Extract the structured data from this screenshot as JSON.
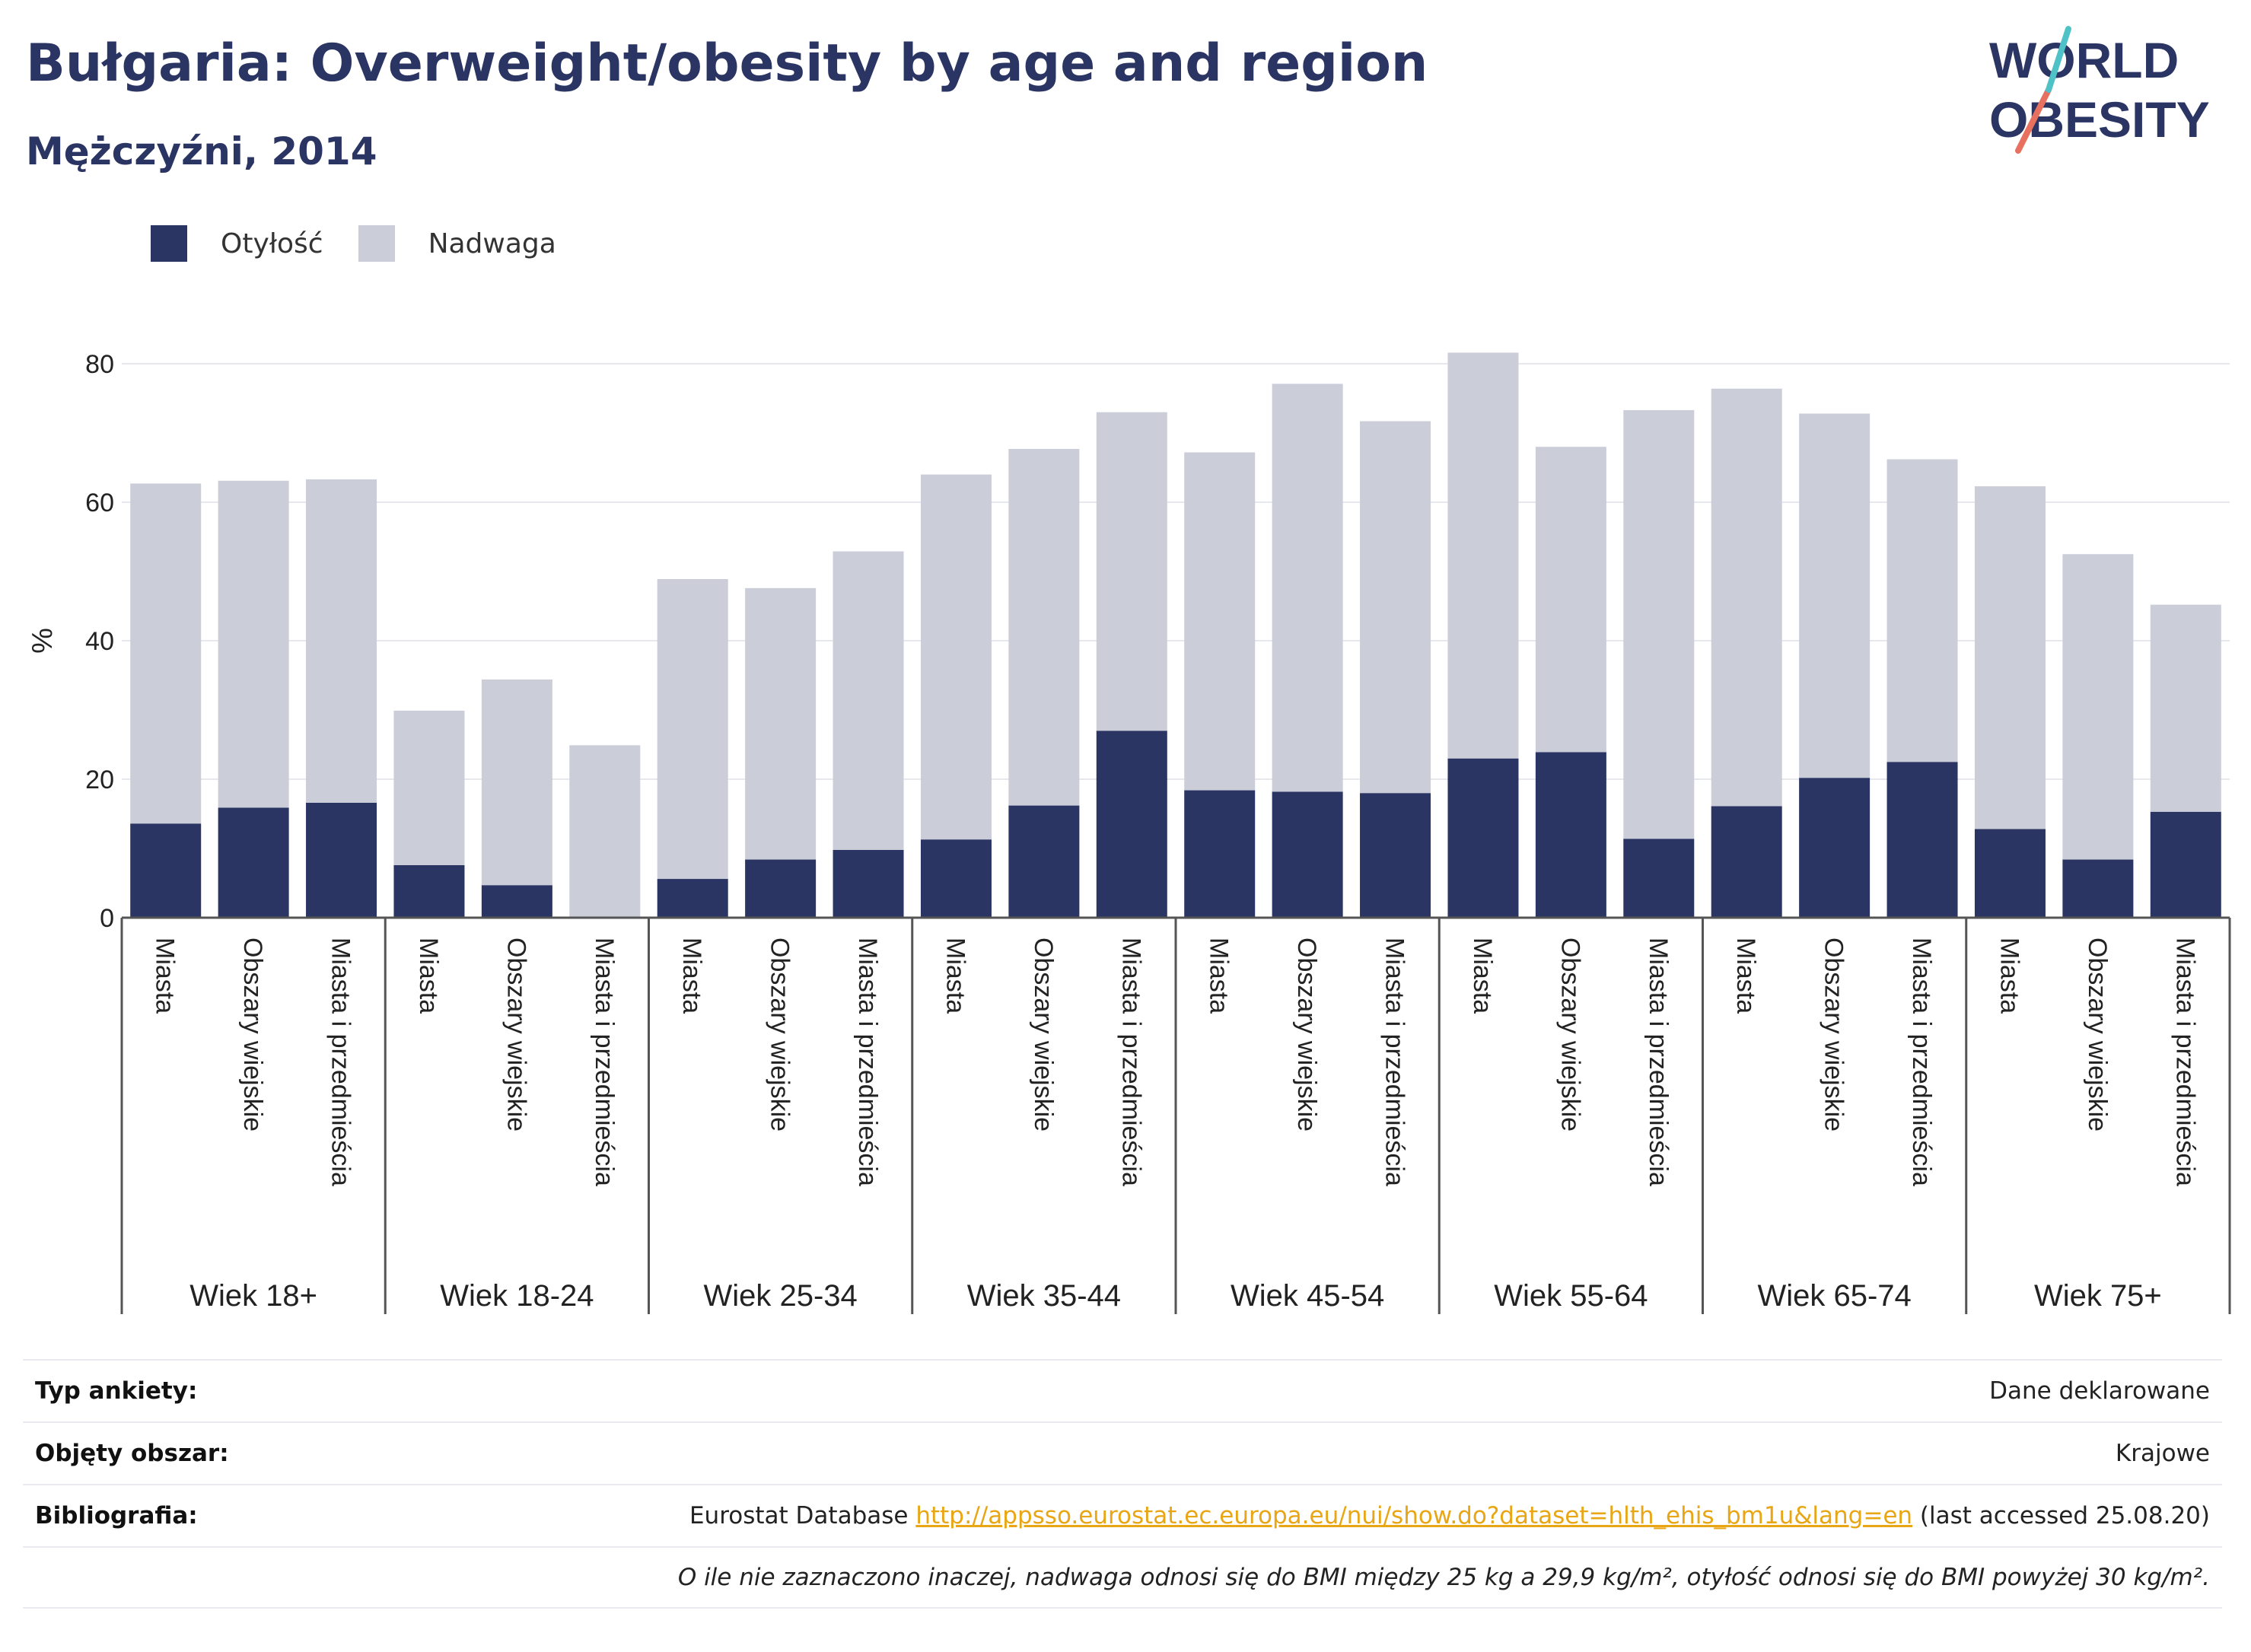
{
  "header": {
    "title": "Bułgaria: Overweight/obesity by age and region",
    "subtitle": "Mężczyźni, 2014"
  },
  "logo": {
    "line1": "WORLD",
    "line2": "OBESITY"
  },
  "legend": {
    "items": [
      {
        "label": "Otyłość",
        "color": "#2b3563"
      },
      {
        "label": "Nadwaga",
        "color": "#cbcdd9"
      }
    ]
  },
  "chart_data": {
    "type": "bar",
    "stacked": true,
    "ylabel": "%",
    "ylim": [
      0,
      85
    ],
    "yticks": [
      0,
      20,
      40,
      60,
      80
    ],
    "grid": true,
    "legend_position": "top-left",
    "groups": [
      "Wiek 18+",
      "Wiek 18-24",
      "Wiek 25-34",
      "Wiek 35-44",
      "Wiek 45-54",
      "Wiek 55-64",
      "Wiek 65-74",
      "Wiek 75+"
    ],
    "subcategories": [
      "Miasta",
      "Obszary wiejskie",
      "Miasta i przedmieścia"
    ],
    "series": [
      {
        "name": "Otyłość",
        "color": "#2b3563",
        "values": [
          13.6,
          15.9,
          16.6,
          7.6,
          4.7,
          0,
          5.6,
          8.4,
          9.8,
          11.3,
          16.2,
          27.0,
          18.4,
          18.2,
          18.0,
          23.0,
          23.9,
          11.4,
          16.1,
          20.2,
          22.5,
          12.8,
          8.4,
          15.3
        ]
      },
      {
        "name": "Nadwaga",
        "color": "#cbcdd9",
        "values": [
          49.1,
          47.2,
          46.7,
          22.3,
          29.7,
          24.9,
          43.3,
          39.2,
          43.1,
          52.7,
          51.5,
          46.0,
          48.8,
          58.9,
          53.7,
          58.6,
          44.1,
          61.9,
          60.3,
          52.6,
          43.7,
          49.5,
          44.1,
          29.9
        ]
      }
    ]
  },
  "info": {
    "survey_label": "Typ ankiety:",
    "survey_value": "Dane deklarowane",
    "coverage_label": "Objęty obszar:",
    "coverage_value": "Krajowe",
    "bibliography_label": "Bibliografia:",
    "bibliography_prefix": "Eurostat Database",
    "bibliography_link": "http://appsso.eurostat.ec.europa.eu/nui/show.do?dataset=hlth_ehis_bm1u&lang=en",
    "bibliography_suffix": "(last accessed 25.08.20)",
    "note": "O ile nie zaznaczono inaczej, nadwaga odnosi się do BMI między 25 kg a 29,9 kg/m², otyłość odnosi się do BMI powyżej 30 kg/m²."
  }
}
